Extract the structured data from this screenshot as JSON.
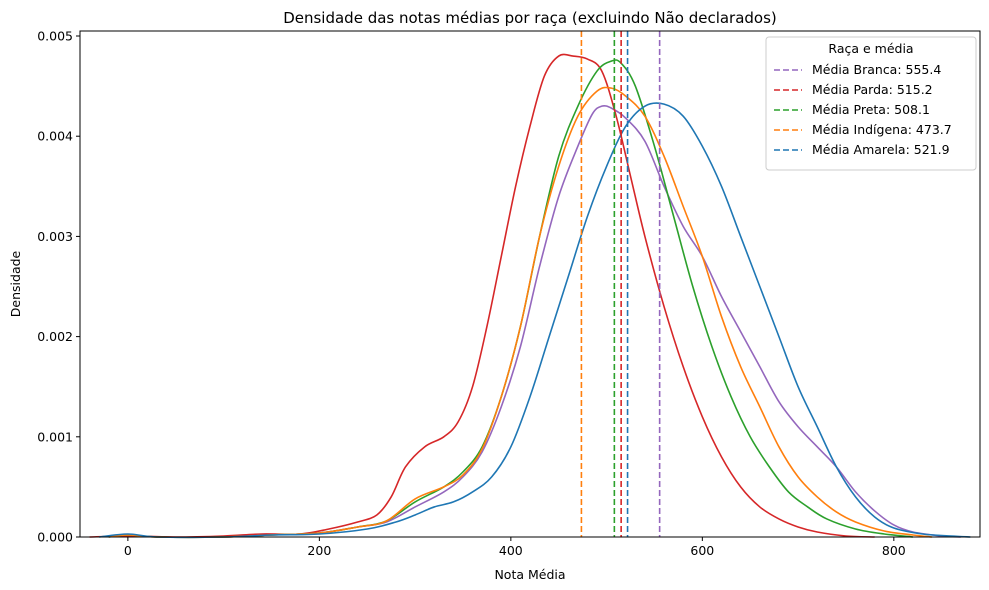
{
  "chart_data": {
    "type": "line",
    "title": "Densidade das notas médias por raça (excluindo Não declarados)",
    "xlabel": "Nota Média",
    "ylabel": "Densidade",
    "xlim": [
      -50,
      890
    ],
    "ylim": [
      0,
      0.00505
    ],
    "xticks": [
      0,
      200,
      400,
      600,
      800
    ],
    "yticks": [
      0.0,
      0.001,
      0.002,
      0.003,
      0.004,
      0.005
    ],
    "ytick_labels": [
      "0.000",
      "0.001",
      "0.002",
      "0.003",
      "0.004",
      "0.005"
    ],
    "grid": false,
    "legend": {
      "title": "Raça e média",
      "placement": "top-right",
      "entries": [
        {
          "label": "Média Branca: 555.4",
          "color": "#9467bd"
        },
        {
          "label": "Média Parda: 515.2",
          "color": "#d62728"
        },
        {
          "label": "Média Preta: 508.1",
          "color": "#2ca02c"
        },
        {
          "label": "Média Indígena: 473.7",
          "color": "#ff7f0e"
        },
        {
          "label": "Média Amarela: 521.9",
          "color": "#1f77b4"
        }
      ]
    },
    "mean_lines": [
      {
        "x": 555.4,
        "color": "#9467bd"
      },
      {
        "x": 515.2,
        "color": "#d62728"
      },
      {
        "x": 508.1,
        "color": "#2ca02c"
      },
      {
        "x": 473.7,
        "color": "#ff7f0e"
      },
      {
        "x": 521.9,
        "color": "#1f77b4"
      }
    ],
    "series": [
      {
        "color": "#9467bd",
        "points": [
          [
            -20,
            1e-05
          ],
          [
            0,
            2e-05
          ],
          [
            30,
            0.0
          ],
          [
            100,
            0.0
          ],
          [
            150,
            2e-05
          ],
          [
            200,
            4e-05
          ],
          [
            240,
            0.0001
          ],
          [
            270,
            0.00015
          ],
          [
            300,
            0.0003
          ],
          [
            330,
            0.00045
          ],
          [
            350,
            0.0006
          ],
          [
            370,
            0.00085
          ],
          [
            390,
            0.0013
          ],
          [
            410,
            0.0019
          ],
          [
            430,
            0.0027
          ],
          [
            450,
            0.0034
          ],
          [
            470,
            0.0039
          ],
          [
            485,
            0.00422
          ],
          [
            495,
            0.0043
          ],
          [
            505,
            0.00428
          ],
          [
            520,
            0.00418
          ],
          [
            540,
            0.00395
          ],
          [
            560,
            0.0035
          ],
          [
            580,
            0.0031
          ],
          [
            600,
            0.0028
          ],
          [
            620,
            0.0024
          ],
          [
            640,
            0.00205
          ],
          [
            660,
            0.0017
          ],
          [
            680,
            0.00135
          ],
          [
            700,
            0.0011
          ],
          [
            720,
            0.0009
          ],
          [
            740,
            0.0007
          ],
          [
            760,
            0.00045
          ],
          [
            780,
            0.00026
          ],
          [
            800,
            0.00012
          ],
          [
            820,
            5e-05
          ],
          [
            850,
            1e-05
          ],
          [
            870,
            0.0
          ]
        ]
      },
      {
        "color": "#d62728",
        "points": [
          [
            -40,
            0.0
          ],
          [
            0,
            1e-05
          ],
          [
            50,
            0.0
          ],
          [
            100,
            1e-05
          ],
          [
            140,
            3e-05
          ],
          [
            180,
            3e-05
          ],
          [
            210,
            8e-05
          ],
          [
            240,
            0.00015
          ],
          [
            260,
            0.00022
          ],
          [
            275,
            0.0004
          ],
          [
            290,
            0.0007
          ],
          [
            310,
            0.0009
          ],
          [
            330,
            0.001
          ],
          [
            345,
            0.00115
          ],
          [
            360,
            0.0015
          ],
          [
            375,
            0.0021
          ],
          [
            390,
            0.0028
          ],
          [
            405,
            0.0035
          ],
          [
            420,
            0.0041
          ],
          [
            435,
            0.0046
          ],
          [
            450,
            0.0048
          ],
          [
            465,
            0.0048
          ],
          [
            480,
            0.00477
          ],
          [
            495,
            0.00465
          ],
          [
            510,
            0.0042
          ],
          [
            525,
            0.0036
          ],
          [
            540,
            0.003
          ],
          [
            560,
            0.0023
          ],
          [
            580,
            0.0017
          ],
          [
            600,
            0.0012
          ],
          [
            620,
            0.0008
          ],
          [
            640,
            0.0005
          ],
          [
            660,
            0.0003
          ],
          [
            680,
            0.00018
          ],
          [
            700,
            0.0001
          ],
          [
            720,
            5e-05
          ],
          [
            750,
            1e-05
          ],
          [
            780,
            0.0
          ]
        ]
      },
      {
        "color": "#2ca02c",
        "points": [
          [
            -20,
            0.0
          ],
          [
            0,
            2e-05
          ],
          [
            30,
            0.0
          ],
          [
            100,
            0.0
          ],
          [
            150,
            2e-05
          ],
          [
            200,
            4e-05
          ],
          [
            240,
            0.0001
          ],
          [
            270,
            0.00016
          ],
          [
            300,
            0.00035
          ],
          [
            330,
            0.0005
          ],
          [
            350,
            0.00065
          ],
          [
            370,
            0.0009
          ],
          [
            390,
            0.0014
          ],
          [
            410,
            0.0021
          ],
          [
            430,
            0.003
          ],
          [
            450,
            0.0038
          ],
          [
            470,
            0.0043
          ],
          [
            490,
            0.00465
          ],
          [
            505,
            0.00475
          ],
          [
            515,
            0.00473
          ],
          [
            530,
            0.0045
          ],
          [
            550,
            0.0039
          ],
          [
            570,
            0.0032
          ],
          [
            590,
            0.0025
          ],
          [
            610,
            0.0019
          ],
          [
            630,
            0.0014
          ],
          [
            650,
            0.001
          ],
          [
            670,
            0.0007
          ],
          [
            690,
            0.00045
          ],
          [
            710,
            0.0003
          ],
          [
            730,
            0.00018
          ],
          [
            760,
            8e-05
          ],
          [
            790,
            3e-05
          ],
          [
            820,
            0.0
          ]
        ]
      },
      {
        "color": "#ff7f0e",
        "points": [
          [
            -20,
            0.0
          ],
          [
            0,
            2e-05
          ],
          [
            30,
            0.0
          ],
          [
            100,
            0.0
          ],
          [
            150,
            2e-05
          ],
          [
            200,
            4e-05
          ],
          [
            240,
            0.0001
          ],
          [
            270,
            0.00016
          ],
          [
            300,
            0.00038
          ],
          [
            330,
            0.0005
          ],
          [
            350,
            0.00062
          ],
          [
            370,
            0.00088
          ],
          [
            390,
            0.0014
          ],
          [
            410,
            0.0021
          ],
          [
            430,
            0.003
          ],
          [
            450,
            0.0037
          ],
          [
            470,
            0.0042
          ],
          [
            490,
            0.00445
          ],
          [
            505,
            0.00448
          ],
          [
            520,
            0.0044
          ],
          [
            540,
            0.0042
          ],
          [
            560,
            0.0038
          ],
          [
            580,
            0.0033
          ],
          [
            600,
            0.0028
          ],
          [
            620,
            0.0022
          ],
          [
            640,
            0.0017
          ],
          [
            660,
            0.0013
          ],
          [
            680,
            0.0009
          ],
          [
            700,
            0.0006
          ],
          [
            720,
            0.0004
          ],
          [
            740,
            0.00025
          ],
          [
            760,
            0.00015
          ],
          [
            790,
            6e-05
          ],
          [
            820,
            2e-05
          ],
          [
            840,
            0.0
          ]
        ]
      },
      {
        "color": "#1f77b4",
        "points": [
          [
            -30,
            0.0
          ],
          [
            0,
            3e-05
          ],
          [
            30,
            0.0
          ],
          [
            100,
            0.0
          ],
          [
            150,
            2e-05
          ],
          [
            200,
            3e-05
          ],
          [
            250,
            8e-05
          ],
          [
            280,
            0.00015
          ],
          [
            300,
            0.00022
          ],
          [
            320,
            0.0003
          ],
          [
            340,
            0.00035
          ],
          [
            360,
            0.00045
          ],
          [
            380,
            0.0006
          ],
          [
            400,
            0.0009
          ],
          [
            420,
            0.0014
          ],
          [
            440,
            0.002
          ],
          [
            460,
            0.0026
          ],
          [
            480,
            0.0032
          ],
          [
            500,
            0.0037
          ],
          [
            520,
            0.0041
          ],
          [
            540,
            0.0043
          ],
          [
            560,
            0.00432
          ],
          [
            580,
            0.0042
          ],
          [
            600,
            0.0039
          ],
          [
            620,
            0.0035
          ],
          [
            640,
            0.003
          ],
          [
            660,
            0.0025
          ],
          [
            680,
            0.002
          ],
          [
            700,
            0.0015
          ],
          [
            720,
            0.0011
          ],
          [
            740,
            0.0007
          ],
          [
            760,
            0.0004
          ],
          [
            780,
            0.0002
          ],
          [
            800,
            9e-05
          ],
          [
            830,
            3e-05
          ],
          [
            860,
            1e-05
          ],
          [
            880,
            0.0
          ]
        ]
      }
    ]
  }
}
